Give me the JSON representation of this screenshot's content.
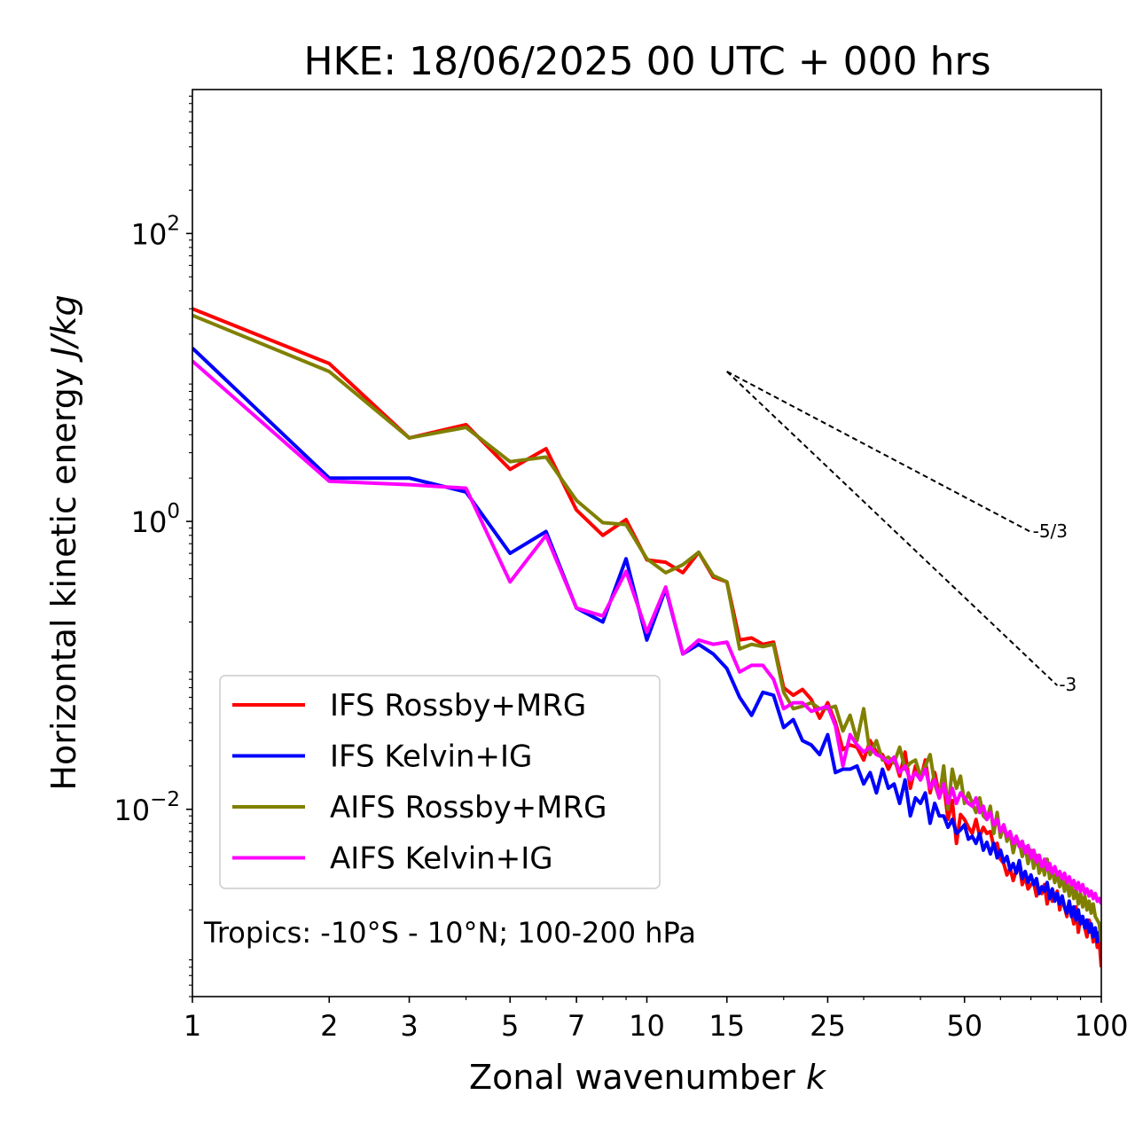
{
  "chart_data": {
    "type": "line",
    "title": "HKE: 18/06/2025 00 UTC + 000 hrs",
    "xlabel": "Zonal wavenumber",
    "xlabel_var": "k",
    "ylabel": "Horizontal kinetic energy",
    "ylabel_unit": "J/kg",
    "xscale": "log",
    "yscale": "log",
    "xlim": [
      1,
      100
    ],
    "ylim": [
      0.0005,
      1000
    ],
    "xticks": [
      {
        "value": 1,
        "label": "1"
      },
      {
        "value": 2,
        "label": "2"
      },
      {
        "value": 3,
        "label": "3"
      },
      {
        "value": 5,
        "label": "5"
      },
      {
        "value": 7,
        "label": "7"
      },
      {
        "value": 10,
        "label": "10"
      },
      {
        "value": 15,
        "label": "15"
      },
      {
        "value": 25,
        "label": "25"
      },
      {
        "value": 50,
        "label": "50"
      },
      {
        "value": 100,
        "label": "100"
      }
    ],
    "yticks": [
      {
        "value": 100,
        "base": "10",
        "exp": "2"
      },
      {
        "value": 1,
        "base": "10",
        "exp": "0"
      },
      {
        "value": 0.01,
        "base": "10",
        "exp": "−2"
      }
    ],
    "grid": false,
    "legend_position": "lower-left",
    "annotation": "Tropics: -10°S - 10°N; 100-200 hPa",
    "reference_slopes": [
      {
        "label": "-5/3",
        "slope": -1.6667,
        "x_start": 15,
        "x_end": 70,
        "y_start": 11.0
      },
      {
        "label": "-3",
        "slope": -3,
        "x_start": 15,
        "x_end": 80,
        "y_start": 11.0
      }
    ],
    "series": [
      {
        "name": "IFS Rossby+MRG",
        "color": "#ff0000",
        "x": [
          1,
          2,
          3,
          4,
          5,
          6,
          7,
          8,
          9,
          10,
          11,
          12,
          13,
          14,
          15,
          16,
          17,
          18,
          19,
          20,
          21,
          22,
          23,
          24,
          25,
          26,
          27,
          28,
          29,
          30,
          31,
          32,
          33,
          34,
          35,
          36,
          37,
          38,
          39,
          40,
          41,
          42,
          43,
          44,
          45,
          46,
          47,
          48,
          49,
          50,
          51,
          52,
          53,
          54,
          55,
          56,
          57,
          58,
          59,
          60,
          61,
          62,
          63,
          64,
          65,
          66,
          67,
          68,
          69,
          70,
          71,
          72,
          73,
          74,
          75,
          76,
          77,
          78,
          79,
          80,
          81,
          82,
          83,
          84,
          85,
          86,
          87,
          88,
          89,
          90,
          91,
          92,
          93,
          94,
          95,
          96,
          97,
          98,
          99,
          100
        ],
        "y": [
          30,
          12.5,
          3.8,
          4.7,
          2.3,
          3.2,
          1.2,
          0.8,
          1.03,
          0.54,
          0.52,
          0.44,
          0.61,
          0.41,
          0.38,
          0.15,
          0.155,
          0.14,
          0.145,
          0.07,
          0.062,
          0.068,
          0.058,
          0.043,
          0.055,
          0.04,
          0.026,
          0.028,
          0.027,
          0.022,
          0.03,
          0.025,
          0.024,
          0.019,
          0.023,
          0.017,
          0.025,
          0.014,
          0.02,
          0.016,
          0.022,
          0.013,
          0.018,
          0.0125,
          0.015,
          0.0085,
          0.0115,
          0.0058,
          0.0092,
          0.0085,
          0.0075,
          0.0068,
          0.0085,
          0.0065,
          0.0075,
          0.0068,
          0.007,
          0.0055,
          0.0058,
          0.0045,
          0.0042,
          0.0035,
          0.0039,
          0.0032,
          0.0038,
          0.0041,
          0.003,
          0.0034,
          0.0028,
          0.003,
          0.0031,
          0.0025,
          0.0028,
          0.0026,
          0.003,
          0.0022,
          0.0027,
          0.0023,
          0.0025,
          0.0027,
          0.002,
          0.0024,
          0.0021,
          0.0018,
          0.0023,
          0.0019,
          0.0016,
          0.0021,
          0.0014,
          0.0018,
          0.0017,
          0.0015,
          0.0013,
          0.0017,
          0.0015,
          0.0012,
          0.0014,
          0.0011,
          0.0012,
          0.0008
        ]
      },
      {
        "name": "IFS Kelvin+IG",
        "color": "#0000ff",
        "x": [
          1,
          2,
          3,
          4,
          5,
          6,
          7,
          8,
          9,
          10,
          11,
          12,
          13,
          14,
          15,
          16,
          17,
          18,
          19,
          20,
          21,
          22,
          23,
          24,
          25,
          26,
          27,
          28,
          29,
          30,
          31,
          32,
          33,
          34,
          35,
          36,
          37,
          38,
          39,
          40,
          41,
          42,
          43,
          44,
          45,
          46,
          47,
          48,
          49,
          50,
          51,
          52,
          53,
          54,
          55,
          56,
          57,
          58,
          59,
          60,
          61,
          62,
          63,
          64,
          65,
          66,
          67,
          68,
          69,
          70,
          71,
          72,
          73,
          74,
          75,
          76,
          77,
          78,
          79,
          80,
          81,
          82,
          83,
          84,
          85,
          86,
          87,
          88,
          89,
          90,
          91,
          92,
          93,
          94,
          95,
          96,
          97,
          98,
          99,
          100
        ],
        "y": [
          16,
          2.0,
          2.0,
          1.6,
          0.6,
          0.85,
          0.25,
          0.2,
          0.55,
          0.15,
          0.34,
          0.12,
          0.14,
          0.12,
          0.095,
          0.06,
          0.045,
          0.065,
          0.062,
          0.037,
          0.042,
          0.03,
          0.028,
          0.024,
          0.033,
          0.018,
          0.019,
          0.019,
          0.02,
          0.015,
          0.018,
          0.013,
          0.019,
          0.014,
          0.015,
          0.011,
          0.016,
          0.009,
          0.012,
          0.011,
          0.013,
          0.008,
          0.011,
          0.009,
          0.009,
          0.0075,
          0.0085,
          0.0068,
          0.0072,
          0.0078,
          0.0062,
          0.0065,
          0.0058,
          0.0068,
          0.0052,
          0.0059,
          0.0049,
          0.0058,
          0.0046,
          0.0052,
          0.0043,
          0.0047,
          0.0038,
          0.0042,
          0.0036,
          0.0044,
          0.0033,
          0.0037,
          0.0031,
          0.0035,
          0.003,
          0.0033,
          0.0026,
          0.0029,
          0.0027,
          0.0031,
          0.0024,
          0.0028,
          0.0023,
          0.0026,
          0.0022,
          0.0025,
          0.0021,
          0.0019,
          0.0023,
          0.0018,
          0.0021,
          0.0017,
          0.002,
          0.0016,
          0.0018,
          0.0015,
          0.0017,
          0.0014,
          0.0016,
          0.0013,
          0.0015,
          0.0012,
          0.0014,
          0.0013
        ]
      },
      {
        "name": "AIFS Rossby+MRG",
        "color": "#808000",
        "x": [
          1,
          2,
          3,
          4,
          5,
          6,
          7,
          8,
          9,
          10,
          11,
          12,
          13,
          14,
          15,
          16,
          17,
          18,
          19,
          20,
          21,
          22,
          23,
          24,
          25,
          26,
          27,
          28,
          29,
          30,
          31,
          32,
          33,
          34,
          35,
          36,
          37,
          38,
          39,
          40,
          41,
          42,
          43,
          44,
          45,
          46,
          47,
          48,
          49,
          50,
          51,
          52,
          53,
          54,
          55,
          56,
          57,
          58,
          59,
          60,
          61,
          62,
          63,
          64,
          65,
          66,
          67,
          68,
          69,
          70,
          71,
          72,
          73,
          74,
          75,
          76,
          77,
          78,
          79,
          80,
          81,
          82,
          83,
          84,
          85,
          86,
          87,
          88,
          89,
          90,
          91,
          92,
          93,
          94,
          95,
          96,
          97,
          98,
          99,
          100
        ],
        "y": [
          27,
          11,
          3.8,
          4.5,
          2.6,
          2.8,
          1.4,
          0.98,
          0.95,
          0.55,
          0.44,
          0.5,
          0.61,
          0.42,
          0.38,
          0.13,
          0.14,
          0.135,
          0.14,
          0.065,
          0.05,
          0.052,
          0.055,
          0.05,
          0.05,
          0.052,
          0.035,
          0.045,
          0.03,
          0.05,
          0.024,
          0.03,
          0.022,
          0.023,
          0.021,
          0.027,
          0.019,
          0.021,
          0.022,
          0.017,
          0.02,
          0.024,
          0.015,
          0.012,
          0.02,
          0.01,
          0.019,
          0.014,
          0.017,
          0.011,
          0.013,
          0.011,
          0.0095,
          0.012,
          0.009,
          0.0085,
          0.0105,
          0.0068,
          0.0095,
          0.0064,
          0.0078,
          0.006,
          0.0068,
          0.005,
          0.0062,
          0.0059,
          0.0047,
          0.0055,
          0.0042,
          0.0052,
          0.0039,
          0.0048,
          0.0036,
          0.0042,
          0.0035,
          0.0045,
          0.0033,
          0.0038,
          0.0031,
          0.0036,
          0.0029,
          0.0034,
          0.0027,
          0.0032,
          0.0025,
          0.003,
          0.0024,
          0.0028,
          0.0022,
          0.0026,
          0.0021,
          0.0025,
          0.002,
          0.0023,
          0.0019,
          0.0022,
          0.0018,
          0.0017,
          0.0016,
          0.0012
        ]
      },
      {
        "name": "AIFS Kelvin+IG",
        "color": "#ff00ff",
        "x": [
          1,
          2,
          3,
          4,
          5,
          6,
          7,
          8,
          9,
          10,
          11,
          12,
          13,
          14,
          15,
          16,
          17,
          18,
          19,
          20,
          21,
          22,
          23,
          24,
          25,
          26,
          27,
          28,
          29,
          30,
          31,
          32,
          33,
          34,
          35,
          36,
          37,
          38,
          39,
          40,
          41,
          42,
          43,
          44,
          45,
          46,
          47,
          48,
          49,
          50,
          51,
          52,
          53,
          54,
          55,
          56,
          57,
          58,
          59,
          60,
          61,
          62,
          63,
          64,
          65,
          66,
          67,
          68,
          69,
          70,
          71,
          72,
          73,
          74,
          75,
          76,
          77,
          78,
          79,
          80,
          81,
          82,
          83,
          84,
          85,
          86,
          87,
          88,
          89,
          90,
          91,
          92,
          93,
          94,
          95,
          96,
          97,
          98,
          99,
          100
        ],
        "y": [
          13,
          1.9,
          1.8,
          1.7,
          0.38,
          0.8,
          0.25,
          0.22,
          0.45,
          0.17,
          0.35,
          0.12,
          0.15,
          0.14,
          0.145,
          0.09,
          0.1,
          0.1,
          0.08,
          0.05,
          0.055,
          0.055,
          0.048,
          0.05,
          0.052,
          0.038,
          0.02,
          0.033,
          0.028,
          0.025,
          0.027,
          0.024,
          0.023,
          0.021,
          0.023,
          0.018,
          0.02,
          0.016,
          0.018,
          0.016,
          0.019,
          0.014,
          0.016,
          0.012,
          0.015,
          0.011,
          0.014,
          0.011,
          0.013,
          0.012,
          0.011,
          0.0105,
          0.012,
          0.0095,
          0.0105,
          0.0085,
          0.0095,
          0.0078,
          0.0085,
          0.007,
          0.0078,
          0.0065,
          0.007,
          0.0058,
          0.0065,
          0.0055,
          0.006,
          0.005,
          0.0056,
          0.0046,
          0.0052,
          0.0043,
          0.0048,
          0.004,
          0.0045,
          0.0038,
          0.0042,
          0.0036,
          0.004,
          0.0035,
          0.0037,
          0.0033,
          0.0036,
          0.0031,
          0.0034,
          0.003,
          0.0032,
          0.0028,
          0.0031,
          0.0027,
          0.003,
          0.0026,
          0.0028,
          0.0025,
          0.0027,
          0.0024,
          0.0026,
          0.0023,
          0.0024,
          0.0022
        ]
      }
    ]
  }
}
